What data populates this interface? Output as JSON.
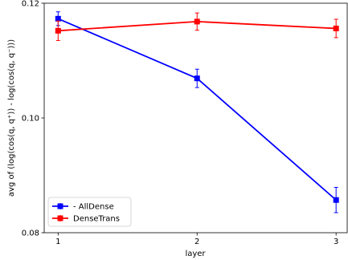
{
  "chart_data": {
    "type": "line",
    "title": "",
    "xlabel": "layer",
    "ylabel": "avg of (log(cos(q, q⁺)) - log(cos(q, q⁻)))",
    "x": [
      1,
      2,
      3
    ],
    "x_ticks": [
      "1",
      "2",
      "3"
    ],
    "y_ticks": [
      "0.08",
      "0.10",
      "0.12"
    ],
    "ylim": [
      0.08,
      0.12
    ],
    "xlim": [
      0.9,
      3.08
    ],
    "grid": false,
    "legend_position": "lower-left",
    "series": [
      {
        "name": "- AllDense",
        "color": "#0000ff",
        "marker": "square",
        "values": [
          0.1173,
          0.1069,
          0.0857
        ],
        "errors": [
          0.0012,
          0.0016,
          0.0022
        ]
      },
      {
        "name": "DenseTrans",
        "color": "#ff0000",
        "marker": "square",
        "values": [
          0.1152,
          0.1168,
          0.1156
        ],
        "errors": [
          0.0017,
          0.0015,
          0.0016
        ]
      }
    ]
  }
}
